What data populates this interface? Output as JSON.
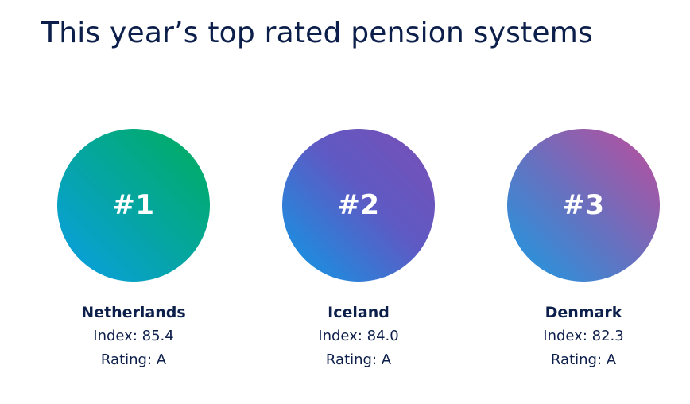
{
  "page": {
    "title": "This year’s top rated pension systems"
  },
  "rankings": [
    {
      "rank": "#1",
      "country": "Netherlands",
      "index": "Index: 85.4",
      "rating": "Rating: A"
    },
    {
      "rank": "#2",
      "country": "Iceland",
      "index": "Index: 84.0",
      "rating": "Rating: A"
    },
    {
      "rank": "#3",
      "country": "Denmark",
      "index": "Index: 82.3",
      "rating": "Rating: A"
    }
  ],
  "colors": {
    "text": "#0c1e4a",
    "circle_1": [
      "#0a9ee6",
      "#00ad5a"
    ],
    "circle_2": [
      "#0b9be6",
      "#7a4fb5"
    ],
    "circle_3": [
      "#1a9be2",
      "#c04c9a"
    ]
  }
}
